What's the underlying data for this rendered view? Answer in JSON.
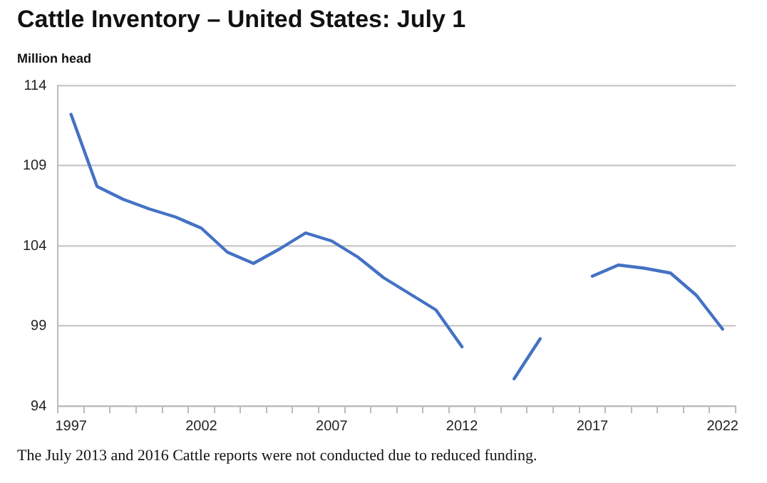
{
  "chart_data": {
    "type": "line",
    "title": "Cattle Inventory – United States: July 1",
    "ylabel": "Million head",
    "categories": [
      "1997",
      null,
      null,
      null,
      null,
      "2002",
      null,
      null,
      null,
      null,
      "2007",
      null,
      null,
      null,
      null,
      "2012",
      null,
      null,
      null,
      null,
      "2017",
      null,
      null,
      null,
      null,
      "2022"
    ],
    "series": [
      {
        "color": "#4472c4",
        "values": [
          112.2,
          107.7,
          106.9,
          106.3,
          105.8,
          105.1,
          103.6,
          102.9,
          103.8,
          104.8,
          104.3,
          103.3,
          102.0,
          101.0,
          100.0,
          97.7,
          null,
          95.7,
          98.2,
          null,
          102.1,
          102.8,
          102.6,
          102.3,
          100.9,
          98.8
        ]
      }
    ],
    "ylim": [
      94,
      114
    ],
    "yticks": [
      94,
      99,
      104,
      109,
      114
    ],
    "grid": "y",
    "legend": false,
    "marker": "none",
    "line_style": "solid",
    "annotations": [
      "The July 2013 and 2016 Cattle reports were not conducted due to reduced funding."
    ]
  }
}
